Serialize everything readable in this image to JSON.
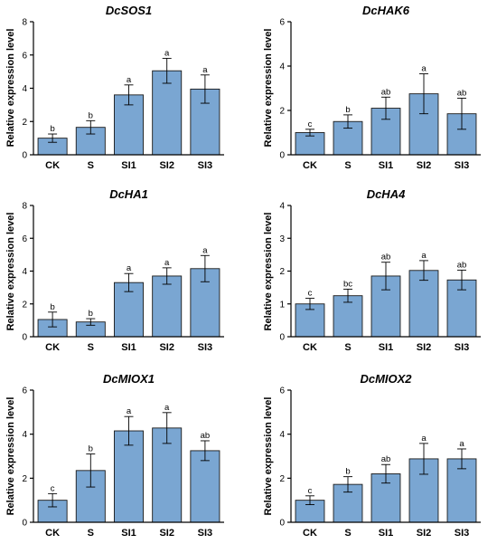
{
  "style": {
    "bar_color": "#7aa6d2"
  },
  "chart_data": [
    {
      "type": "bar",
      "title": "DcSOS1",
      "ylabel": "Relative expression level",
      "xlabel": "",
      "categories": [
        "CK",
        "S",
        "SI1",
        "SI2",
        "SI3"
      ],
      "values": [
        1.0,
        1.65,
        3.6,
        5.05,
        3.95
      ],
      "errors": [
        0.25,
        0.4,
        0.6,
        0.75,
        0.85
      ],
      "significance": [
        "b",
        "b",
        "a",
        "a",
        "a"
      ],
      "ylim": [
        0,
        8
      ],
      "yticks": [
        0,
        2,
        4,
        6,
        8
      ]
    },
    {
      "type": "bar",
      "title": "DcHAK6",
      "ylabel": "Relative expression level",
      "xlabel": "",
      "categories": [
        "CK",
        "S",
        "SI1",
        "SI2",
        "SI3"
      ],
      "values": [
        1.0,
        1.5,
        2.1,
        2.75,
        1.85
      ],
      "errors": [
        0.15,
        0.3,
        0.5,
        0.9,
        0.7
      ],
      "significance": [
        "c",
        "b",
        "ab",
        "a",
        "ab"
      ],
      "ylim": [
        0,
        6
      ],
      "yticks": [
        0,
        2,
        4,
        6
      ]
    },
    {
      "type": "bar",
      "title": "DcHA1",
      "ylabel": "Relative expression level",
      "xlabel": "",
      "categories": [
        "CK",
        "S",
        "SI1",
        "SI2",
        "SI3"
      ],
      "values": [
        1.05,
        0.9,
        3.3,
        3.7,
        4.15
      ],
      "errors": [
        0.45,
        0.2,
        0.55,
        0.5,
        0.8
      ],
      "significance": [
        "b",
        "b",
        "a",
        "a",
        "a"
      ],
      "ylim": [
        0,
        8
      ],
      "yticks": [
        0,
        2,
        4,
        6,
        8
      ]
    },
    {
      "type": "bar",
      "title": "DcHA4",
      "ylabel": "Relative expression level",
      "xlabel": "",
      "categories": [
        "CK",
        "S",
        "SI1",
        "SI2",
        "SI3"
      ],
      "values": [
        1.0,
        1.25,
        1.85,
        2.02,
        1.73
      ],
      "errors": [
        0.17,
        0.2,
        0.42,
        0.3,
        0.3
      ],
      "significance": [
        "c",
        "bc",
        "ab",
        "a",
        "ab"
      ],
      "ylim": [
        0,
        4
      ],
      "yticks": [
        0,
        1,
        2,
        3,
        4
      ]
    },
    {
      "type": "bar",
      "title": "DcMIOX1",
      "ylabel": "Relative expression level",
      "xlabel": "",
      "categories": [
        "CK",
        "S",
        "SI1",
        "SI2",
        "SI3"
      ],
      "values": [
        1.0,
        2.35,
        4.15,
        4.28,
        3.25
      ],
      "errors": [
        0.3,
        0.75,
        0.65,
        0.7,
        0.45
      ],
      "significance": [
        "c",
        "b",
        "a",
        "a",
        "ab"
      ],
      "ylim": [
        0,
        6
      ],
      "yticks": [
        0,
        2,
        4,
        6
      ]
    },
    {
      "type": "bar",
      "title": "DcMIOX2",
      "ylabel": "Relative expression level",
      "xlabel": "",
      "categories": [
        "CK",
        "S",
        "SI1",
        "SI2",
        "SI3"
      ],
      "values": [
        1.0,
        1.72,
        2.2,
        2.88,
        2.88
      ],
      "errors": [
        0.2,
        0.35,
        0.42,
        0.7,
        0.45
      ],
      "significance": [
        "c",
        "b",
        "ab",
        "a",
        "a"
      ],
      "ylim": [
        0,
        6
      ],
      "yticks": [
        0,
        2,
        4,
        6
      ]
    }
  ]
}
